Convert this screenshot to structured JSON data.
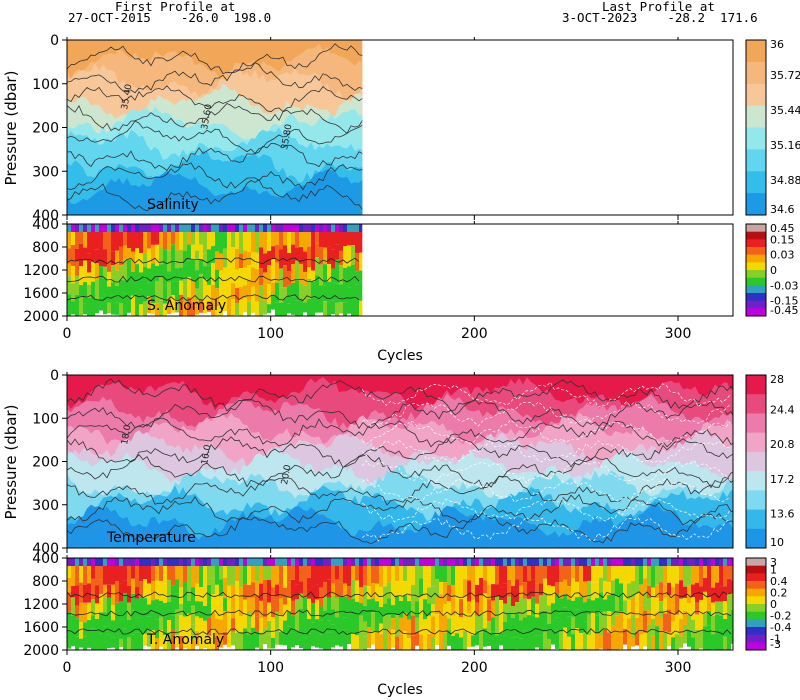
{
  "header": {
    "first_label": "First Profile at",
    "first_value": "27-OCT-2015    -26.0  198.0",
    "last_label": "Last Profile at",
    "last_value": "3-OCT-2023    -28.2  171.6"
  },
  "chart_data": [
    {
      "type": "heatmap",
      "panel": "salinity",
      "annotation": "Salinity",
      "xlabel": "Cycles",
      "ylabel": "Pressure (dbar)",
      "xlim": [
        0,
        327
      ],
      "ylim": [
        400,
        0
      ],
      "x_ticks": [
        0,
        100,
        200,
        300
      ],
      "y_ticks": [
        0,
        100,
        200,
        300,
        400
      ],
      "data_extent_cycles": [
        0,
        145
      ],
      "colorbar": {
        "ticks": [
          "36",
          "35.72",
          "35.44",
          "35.16",
          "34.88",
          "34.6"
        ],
        "colors": [
          "#f2a657",
          "#f5b77b",
          "#f7c79a",
          "#cde6d0",
          "#94e8ec",
          "#62d6ef",
          "#33bdea",
          "#1d9ae6"
        ]
      },
      "contour_labels": [
        "35.40",
        "35.60",
        "35.80"
      ]
    },
    {
      "type": "heatmap",
      "panel": "salinity-anomaly",
      "annotation": "S. Anomaly",
      "xlabel": "Cycles",
      "xlim": [
        0,
        327
      ],
      "ylim": [
        2000,
        400
      ],
      "x_ticks": [
        0,
        100,
        200,
        300
      ],
      "y_ticks": [
        400,
        800,
        1200,
        1600,
        2000
      ],
      "data_extent_cycles": [
        0,
        145
      ],
      "colorbar": {
        "ticks": [
          "0.45",
          "0.15",
          "0.03",
          "0",
          "-0.03",
          "-0.15",
          "-0.45"
        ],
        "colors": [
          "#c8a6a6",
          "#b81010",
          "#e82020",
          "#f26218",
          "#f7a800",
          "#f5d800",
          "#88d028",
          "#2ac828",
          "#32a0c0",
          "#3030c8",
          "#7020c8",
          "#c000e0"
        ]
      }
    },
    {
      "type": "heatmap",
      "panel": "temperature",
      "annotation": "Temperature",
      "xlabel": "Cycles",
      "ylabel": "Pressure (dbar)",
      "xlim": [
        0,
        327
      ],
      "ylim": [
        400,
        0
      ],
      "x_ticks": [
        0,
        100,
        200,
        300
      ],
      "y_ticks": [
        0,
        100,
        200,
        300,
        400
      ],
      "data_extent_cycles": [
        0,
        327
      ],
      "colorbar": {
        "ticks": [
          "28",
          "24.4",
          "20.8",
          "17.2",
          "13.6",
          "10"
        ],
        "colors": [
          "#e5194a",
          "#e84a7d",
          "#ec7aaa",
          "#f1a4c6",
          "#dcc6e0",
          "#bde6ee",
          "#7fd9ef",
          "#34b8ec",
          "#1e95e6"
        ]
      },
      "contour_labels": [
        "18.0",
        "16.0",
        "20.0"
      ]
    },
    {
      "type": "heatmap",
      "panel": "temperature-anomaly",
      "annotation": "T. Anomaly",
      "xlabel": "Cycles",
      "xlim": [
        0,
        327
      ],
      "ylim": [
        2000,
        400
      ],
      "x_ticks": [
        0,
        100,
        200,
        300
      ],
      "y_ticks": [
        400,
        800,
        1200,
        1600,
        2000
      ],
      "data_extent_cycles": [
        0,
        327
      ],
      "colorbar": {
        "ticks": [
          "3",
          "1",
          "0.4",
          "0.2",
          "0",
          "-0.2",
          "-0.4",
          "-1",
          "-3"
        ],
        "colors": [
          "#c8a6a6",
          "#b81010",
          "#e82020",
          "#f26218",
          "#f7a800",
          "#f5d800",
          "#88d028",
          "#2ac828",
          "#32a0c0",
          "#3030c8",
          "#7020c8",
          "#c000e0"
        ]
      }
    }
  ]
}
